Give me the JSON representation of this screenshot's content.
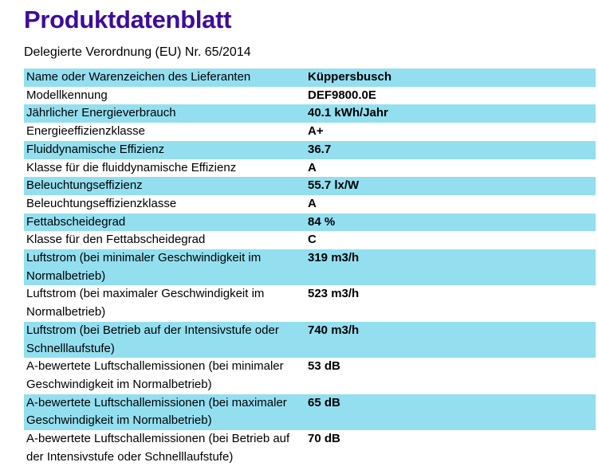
{
  "page": {
    "title": "Produktdatenblatt",
    "subtitle": "Delegierte Verordnung (EU) Nr. 65/2014"
  },
  "colors": {
    "title_text": "#3C0C9C",
    "row_highlight": "#93DFF0",
    "body_text": "#000000",
    "background": "#FFFFFF"
  },
  "table": {
    "rows": [
      {
        "label": "Name oder Warenzeichen des Lieferanten",
        "value": "Küppersbusch",
        "highlight": true
      },
      {
        "label": "Modellkennung",
        "value": "DEF9800.0E",
        "highlight": false
      },
      {
        "label": "Jährlicher Energieverbrauch",
        "value": "40.1 kWh/Jahr",
        "highlight": true
      },
      {
        "label": "Energieeffizienzklasse",
        "value": "A+",
        "highlight": false
      },
      {
        "label": "Fluiddynamische Effizienz",
        "value": "36.7",
        "highlight": true
      },
      {
        "label": "Klasse für die fluiddynamische Effizienz",
        "value": "A",
        "highlight": false
      },
      {
        "label": "Beleuchtungseffizienz",
        "value": "55.7 lx/W",
        "highlight": true
      },
      {
        "label": "Beleuchtungseffizienzklasse",
        "value": "A",
        "highlight": false
      },
      {
        "label": "Fettabscheidegrad",
        "value": "84 %",
        "highlight": true
      },
      {
        "label": "Klasse für den Fettabscheidegrad",
        "value": "C",
        "highlight": false
      },
      {
        "label": "Luftstrom (bei minimaler Geschwindigkeit im\nNormalbetrieb)",
        "value": "319 m3/h",
        "highlight": true
      },
      {
        "label": "Luftstrom (bei maximaler Geschwindigkeit im\nNormalbetrieb)",
        "value": "523 m3/h",
        "highlight": false
      },
      {
        "label": "Luftstrom (bei Betrieb auf der Intensivstufe oder\nSchnelllaufstufe)",
        "value": "740 m3/h",
        "highlight": true
      },
      {
        "label": "A-bewertete Luftschallemissionen (bei minimaler\nGeschwindigkeit im Normalbetrieb)",
        "value": "53 dB",
        "highlight": false
      },
      {
        "label": "A-bewertete Luftschallemissionen (bei maximaler\nGeschwindigkeit im Normalbetrieb)",
        "value": "65 dB",
        "highlight": true
      },
      {
        "label": "A-bewertete Luftschallemissionen (bei Betrieb auf\nder Intensivstufe oder Schnelllaufstufe)",
        "value": "70 dB",
        "highlight": false
      }
    ]
  }
}
